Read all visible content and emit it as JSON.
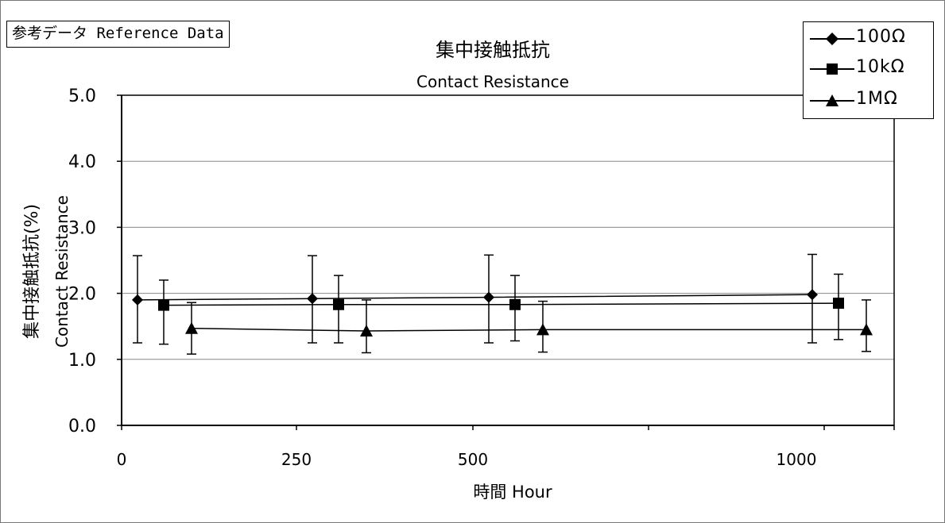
{
  "reference_label": "参考データ Reference Data",
  "chart_data": {
    "type": "line",
    "title": "集中接触抵抗",
    "subtitle": "Contact Resistance",
    "xlabel": "時間 Hour",
    "ylabel": "集中接触抵抗(%)",
    "ylabel_secondary": "Contact Resistance",
    "x_ticks": [
      "0",
      "250",
      "500",
      "1000"
    ],
    "y_ticks": [
      "0.0",
      "1.0",
      "2.0",
      "3.0",
      "4.0",
      "5.0"
    ],
    "ylim": [
      0,
      5
    ],
    "grid": "horizontal",
    "legend_position": "top-right",
    "series": [
      {
        "name": "100Ω",
        "marker": "diamond",
        "points": [
          {
            "x": 0,
            "y": 1.9,
            "err_low": 1.25,
            "err_high": 2.57
          },
          {
            "x": 250,
            "y": 1.92,
            "err_low": 1.25,
            "err_high": 2.57
          },
          {
            "x": 500,
            "y": 1.94,
            "err_low": 1.25,
            "err_high": 2.58
          },
          {
            "x": 1000,
            "y": 1.98,
            "err_low": 1.25,
            "err_high": 2.59
          }
        ]
      },
      {
        "name": "10kΩ",
        "marker": "square",
        "points": [
          {
            "x": 0,
            "y": 1.82,
            "err_low": 1.23,
            "err_high": 2.2
          },
          {
            "x": 250,
            "y": 1.83,
            "err_low": 1.25,
            "err_high": 2.27
          },
          {
            "x": 500,
            "y": 1.83,
            "err_low": 1.28,
            "err_high": 2.27
          },
          {
            "x": 1000,
            "y": 1.85,
            "err_low": 1.3,
            "err_high": 2.29
          }
        ]
      },
      {
        "name": "1MΩ",
        "marker": "triangle",
        "points": [
          {
            "x": 0,
            "y": 1.47,
            "err_low": 1.08,
            "err_high": 1.86
          },
          {
            "x": 250,
            "y": 1.43,
            "err_low": 1.1,
            "err_high": 1.9
          },
          {
            "x": 500,
            "y": 1.45,
            "err_low": 1.11,
            "err_high": 1.88
          },
          {
            "x": 1000,
            "y": 1.45,
            "err_low": 1.12,
            "err_high": 1.9
          }
        ]
      }
    ]
  }
}
